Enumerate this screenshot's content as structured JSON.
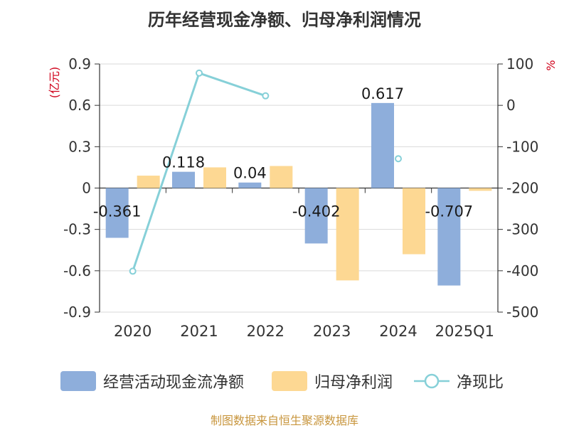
{
  "title": "历年经营现金净额、归母净利润情况",
  "source": "制图数据来自恒生聚源数据库",
  "colors": {
    "cash": "#8eaedb",
    "profit": "#fdd893",
    "ratio": "#86d0d8",
    "axis": "#333333",
    "grid": "#d9d9d9",
    "unit": "#d0021b"
  },
  "chart_data": {
    "type": "bar",
    "categories": [
      "2020",
      "2021",
      "2022",
      "2023",
      "2024",
      "2025Q1"
    ],
    "series": [
      {
        "name": "经营活动现金流净额",
        "type": "bar",
        "axis": "left",
        "values": [
          -0.361,
          0.118,
          0.04,
          -0.402,
          0.617,
          -0.707
        ],
        "labels": [
          "-0.361",
          "0.118",
          "0.04",
          "-0.402",
          "0.617",
          "-0.707"
        ]
      },
      {
        "name": "归母净利润",
        "type": "bar",
        "axis": "left",
        "values": [
          0.09,
          0.15,
          0.16,
          -0.67,
          -0.48,
          -0.02
        ]
      },
      {
        "name": "净现比",
        "type": "line",
        "axis": "right",
        "values": [
          -401,
          78,
          23,
          null,
          -129,
          null
        ]
      }
    ],
    "y_left": {
      "unit": "(亿元)",
      "ylim": [
        -0.9,
        0.9
      ],
      "ticks": [
        "0.9",
        "0.6",
        "0.3",
        "0",
        "-0.3",
        "-0.6",
        "-0.9"
      ]
    },
    "y_right": {
      "unit": "%",
      "ylim": [
        -500,
        100
      ],
      "ticks": [
        "100",
        "0",
        "-100",
        "-200",
        "-300",
        "-400",
        "-500"
      ]
    },
    "grid": true,
    "legend_position": "bottom"
  }
}
